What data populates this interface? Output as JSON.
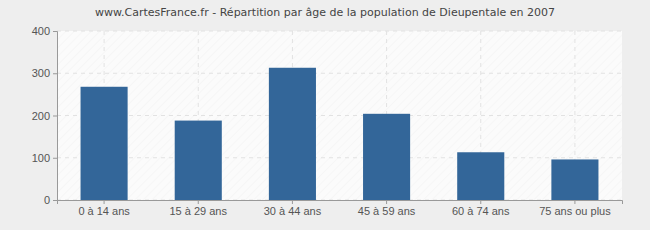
{
  "chart_data": {
    "type": "bar",
    "title": "www.CartesFrance.fr - Répartition par âge de la population de Dieupentale en 2007",
    "categories": [
      "0 à 14 ans",
      "15 à 29 ans",
      "30 à 44 ans",
      "45 à 59 ans",
      "60 à 74 ans",
      "75 ans ou plus"
    ],
    "values": [
      268,
      188,
      313,
      204,
      113,
      96
    ],
    "color": "#336699",
    "ylim": [
      0,
      400
    ],
    "yticks": [
      0,
      100,
      200,
      300,
      400
    ],
    "grid": true
  }
}
